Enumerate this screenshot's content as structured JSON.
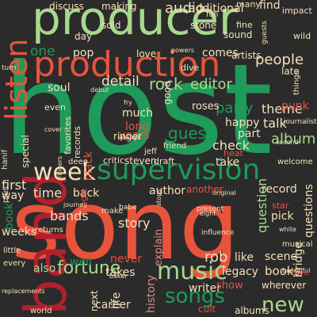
{
  "palette": {
    "background": "#2b2b2b",
    "light_green": "#a7d98c",
    "green": "#1e9a5a",
    "red": "#e8533c",
    "dark_red": "#b3202c",
    "cream": "#f5e0b8",
    "pink": "#d98a8a"
  },
  "words": [
    {
      "text": "host",
      "color": "green"
    },
    {
      "text": "song",
      "color": "red"
    },
    {
      "text": "producer",
      "color": "light_green"
    },
    {
      "text": "band",
      "color": "dark_red"
    },
    {
      "text": "production",
      "color": "red"
    },
    {
      "text": "supervision",
      "color": "green"
    },
    {
      "text": "listen",
      "color": "red"
    },
    {
      "text": "week",
      "color": "cream"
    },
    {
      "text": "music",
      "color": "light_green"
    },
    {
      "text": "songs",
      "color": "green"
    },
    {
      "text": "new",
      "color": "light_green"
    },
    {
      "text": "fortune",
      "color": "light_green"
    },
    {
      "text": "audio",
      "color": "cream"
    },
    {
      "text": "additional",
      "color": "cream"
    },
    {
      "text": "find",
      "color": "cream"
    },
    {
      "text": "people",
      "color": "cream"
    },
    {
      "text": "rock",
      "color": "light_green"
    },
    {
      "text": "editor",
      "color": "light_green"
    },
    {
      "text": "detail",
      "color": "cream"
    },
    {
      "text": "party",
      "color": "green"
    },
    {
      "text": "guest",
      "color": "green"
    },
    {
      "text": "album",
      "color": "light_green"
    },
    {
      "text": "theme",
      "color": "cream"
    },
    {
      "text": "talk",
      "color": "cream"
    },
    {
      "text": "check",
      "color": "cream"
    },
    {
      "text": "question",
      "color": "light_green"
    },
    {
      "text": "bands",
      "color": "cream"
    },
    {
      "text": "story",
      "color": "cream"
    },
    {
      "text": "books",
      "color": "cream"
    },
    {
      "text": "rob",
      "color": "cream"
    },
    {
      "text": "time",
      "color": "cream"
    },
    {
      "text": "first",
      "color": "cream"
    },
    {
      "text": "back",
      "color": "cream"
    },
    {
      "text": "author",
      "color": "cream"
    },
    {
      "text": "record",
      "color": "cream"
    },
    {
      "text": "bridge",
      "color": "cream"
    },
    {
      "text": "questions",
      "color": "cream"
    },
    {
      "text": "history",
      "color": "pink"
    },
    {
      "text": "explain",
      "color": "pink"
    },
    {
      "text": "writer",
      "color": "cream"
    },
    {
      "text": "scene",
      "color": "cream"
    },
    {
      "text": "like",
      "color": "cream"
    },
    {
      "text": "legacy",
      "color": "cream"
    },
    {
      "text": "wherever",
      "color": "cream"
    },
    {
      "text": "also",
      "color": "light_green"
    },
    {
      "text": "soul",
      "color": "cream"
    },
    {
      "text": "much",
      "color": "cream"
    },
    {
      "text": "one",
      "color": "green"
    },
    {
      "text": "pop",
      "color": "cream"
    },
    {
      "text": "love",
      "color": "cream"
    },
    {
      "text": "comes",
      "color": "cream"
    },
    {
      "text": "artists",
      "color": "cream"
    },
    {
      "text": "discuss",
      "color": "cream"
    },
    {
      "text": "making",
      "color": "cream"
    },
    {
      "text": "day",
      "color": "cream"
    },
    {
      "text": "sold",
      "color": "cream"
    },
    {
      "text": "stone",
      "color": "cream"
    },
    {
      "text": "sound",
      "color": "cream"
    },
    {
      "text": "fine",
      "color": "cream"
    },
    {
      "text": "long",
      "color": "red"
    },
    {
      "text": "years",
      "color": "red"
    },
    {
      "text": "good",
      "color": "cream"
    },
    {
      "text": "steven",
      "color": "cream"
    },
    {
      "text": "critic",
      "color": "cream"
    },
    {
      "text": "draft",
      "color": "cream"
    },
    {
      "text": "take",
      "color": "cream"
    },
    {
      "text": "jeff",
      "color": "cream"
    },
    {
      "text": "weeks",
      "color": "cream"
    },
    {
      "text": "way",
      "color": "cream"
    },
    {
      "text": "special",
      "color": "cream"
    },
    {
      "text": "favorites",
      "color": "cream"
    },
    {
      "text": "records",
      "color": "cream"
    },
    {
      "text": "black",
      "color": "red"
    },
    {
      "text": "ringer",
      "color": "cream"
    },
    {
      "text": "another",
      "color": "red"
    },
    {
      "text": "make",
      "color": "cream"
    },
    {
      "text": "never",
      "color": "red"
    },
    {
      "text": "takes",
      "color": "cream"
    },
    {
      "text": "well",
      "color": "green"
    },
    {
      "text": "show",
      "color": "red"
    },
    {
      "text": "career",
      "color": "cream"
    },
    {
      "text": "next",
      "color": "cream"
    },
    {
      "text": "life",
      "color": "cream"
    },
    {
      "text": "albums",
      "color": "cream"
    },
    {
      "text": "cult",
      "color": "red"
    },
    {
      "text": "punk",
      "color": "red"
    },
    {
      "text": "late",
      "color": "cream"
    },
    {
      "text": "happy",
      "color": "cream"
    },
    {
      "text": "part",
      "color": "cream"
    },
    {
      "text": "friend",
      "color": "cream"
    },
    {
      "text": "welcome",
      "color": "cream"
    },
    {
      "text": "even",
      "color": "cream"
    },
    {
      "text": "deep",
      "color": "cream"
    },
    {
      "text": "returns",
      "color": "cream"
    },
    {
      "text": "book",
      "color": "green"
    },
    {
      "text": "plus",
      "color": "cream"
    },
    {
      "text": "little",
      "color": "cream"
    },
    {
      "text": "every",
      "color": "cream"
    },
    {
      "text": "single",
      "color": "red"
    },
    {
      "text": "star",
      "color": "red"
    },
    {
      "text": "pick",
      "color": "cream"
    },
    {
      "text": "musical",
      "color": "cream"
    },
    {
      "text": "world",
      "color": "cream"
    },
    {
      "text": "present",
      "color": "cream"
    },
    {
      "text": "influence",
      "color": "cream"
    },
    {
      "text": "many",
      "color": "cream"
    },
    {
      "text": "wild",
      "color": "cream"
    },
    {
      "text": "impact",
      "color": "cream"
    },
    {
      "text": "things",
      "color": "cream"
    },
    {
      "text": "journalist",
      "color": "cream"
    },
    {
      "text": "journey",
      "color": "cream"
    },
    {
      "text": "baker",
      "color": "cream"
    },
    {
      "text": "babe",
      "color": "cream"
    },
    {
      "text": "roses",
      "color": "cream"
    },
    {
      "text": "heat",
      "color": "red"
    },
    {
      "text": "always",
      "color": "cream"
    },
    {
      "text": "beautiful",
      "color": "cream"
    },
    {
      "text": "stops",
      "color": "cream"
    },
    {
      "text": "replacements",
      "color": "cream"
    },
    {
      "text": "dive",
      "color": "cream"
    },
    {
      "text": "guests",
      "color": "cream"
    },
    {
      "text": "full",
      "color": "cream"
    },
    {
      "text": "turn",
      "color": "cream"
    },
    {
      "text": "debut",
      "color": "cream"
    },
    {
      "text": "hanif",
      "color": "cream"
    },
    {
      "text": "eight",
      "color": "cream"
    },
    {
      "text": "live",
      "color": "red"
    },
    {
      "text": "powers",
      "color": "cream"
    },
    {
      "text": "fry",
      "color": "cream"
    },
    {
      "text": "second",
      "color": "cream"
    },
    {
      "text": "white",
      "color": "cream"
    },
    {
      "text": "cover",
      "color": "cream"
    },
    {
      "text": "original",
      "color": "cream"
    },
    {
      "text": "ringers",
      "color": "cream"
    }
  ]
}
